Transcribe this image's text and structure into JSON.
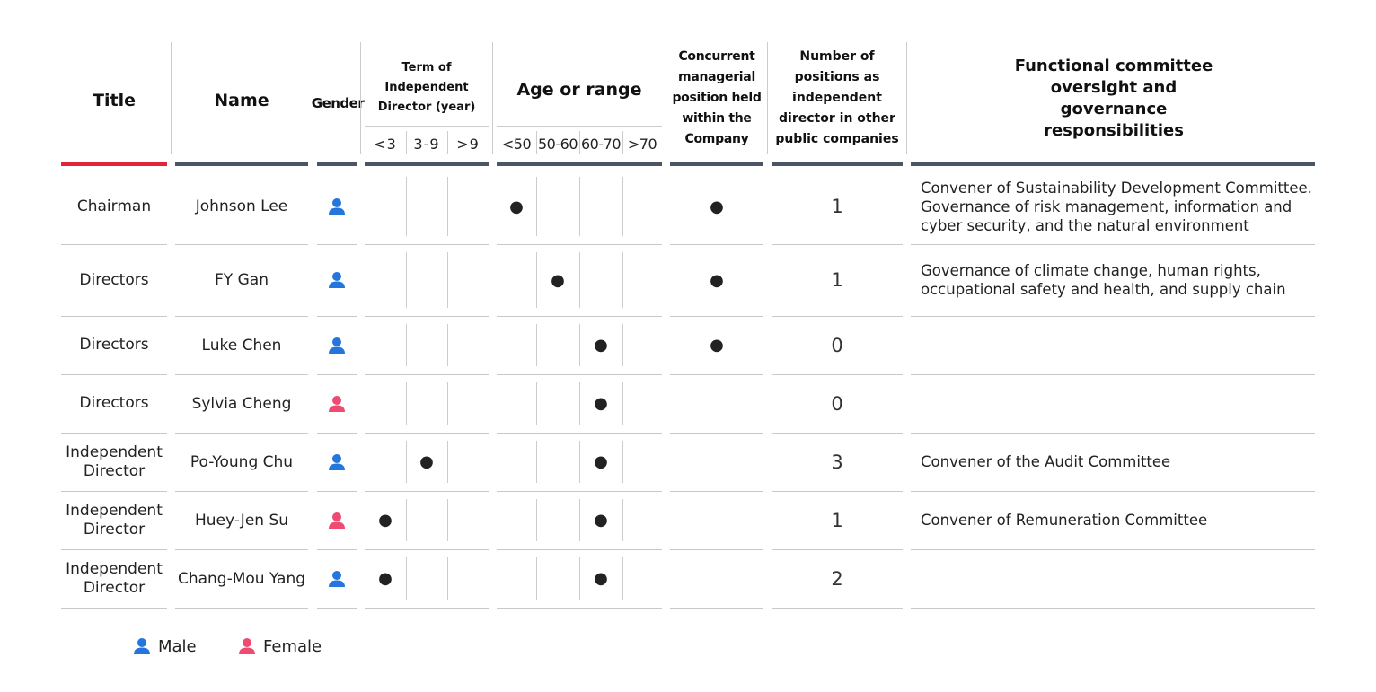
{
  "header": {
    "title": "Title",
    "name": "Name",
    "gender": "Gender",
    "term": {
      "label": "Term of Independent Director (year)",
      "sub": [
        "<3",
        "3-9",
        ">9"
      ]
    },
    "age": {
      "label": "Age or range",
      "sub": [
        "<50",
        "50-60",
        "60-70",
        ">70"
      ]
    },
    "concurrent": "Concurrent managerial position held within the Company",
    "positions": "Number of positions as independent director in other public companies",
    "responsibilities": "Functional committee oversight and governance responsibilities"
  },
  "rows": [
    {
      "title": "Chairman",
      "name": "Johnson Lee",
      "gender": "Male",
      "term": [
        null,
        null,
        null
      ],
      "age": [
        "●",
        null,
        null,
        null
      ],
      "concurrent": "●",
      "positions": 1,
      "responsibilities": "Convener of Sustainability Development Committee. Governance of risk management, information and cyber security, and the natural environment"
    },
    {
      "title": "Directors",
      "name": "FY Gan",
      "gender": "Male",
      "term": [
        null,
        null,
        null
      ],
      "age": [
        null,
        "●",
        null,
        null
      ],
      "concurrent": "●",
      "positions": 1,
      "responsibilities": "Governance of climate change, human rights, occupational safety and health, and supply chain"
    },
    {
      "title": "Directors",
      "name": "Luke Chen",
      "gender": "Male",
      "term": [
        null,
        null,
        null
      ],
      "age": [
        null,
        null,
        "●",
        null
      ],
      "concurrent": "●",
      "positions": 0,
      "responsibilities": null
    },
    {
      "title": "Directors",
      "name": "Sylvia Cheng",
      "gender": "Female",
      "term": [
        null,
        null,
        null
      ],
      "age": [
        null,
        null,
        "●",
        null
      ],
      "concurrent": null,
      "positions": 0,
      "responsibilities": null
    },
    {
      "title": "Independent Director",
      "name": "Po-Young Chu",
      "gender": "Male",
      "term": [
        null,
        "●",
        null
      ],
      "age": [
        null,
        null,
        "●",
        null
      ],
      "concurrent": null,
      "positions": 3,
      "responsibilities": "Convener of the Audit Committee"
    },
    {
      "title": "Independent Director",
      "name": "Huey-Jen Su",
      "gender": "Female",
      "term": [
        "●",
        null,
        null
      ],
      "age": [
        null,
        null,
        "●",
        null
      ],
      "concurrent": null,
      "positions": 1,
      "responsibilities": "Convener of Remuneration Committee"
    },
    {
      "title": "Independent Director",
      "name": "Chang-Mou Yang",
      "gender": "Male",
      "term": [
        "●",
        null,
        null
      ],
      "age": [
        null,
        null,
        "●",
        null
      ],
      "concurrent": null,
      "positions": 2,
      "responsibilities": null
    }
  ],
  "legend": [
    {
      "label": "Male",
      "color": "#2476dd"
    },
    {
      "label": "Female",
      "color": "#ee4a72"
    }
  ]
}
